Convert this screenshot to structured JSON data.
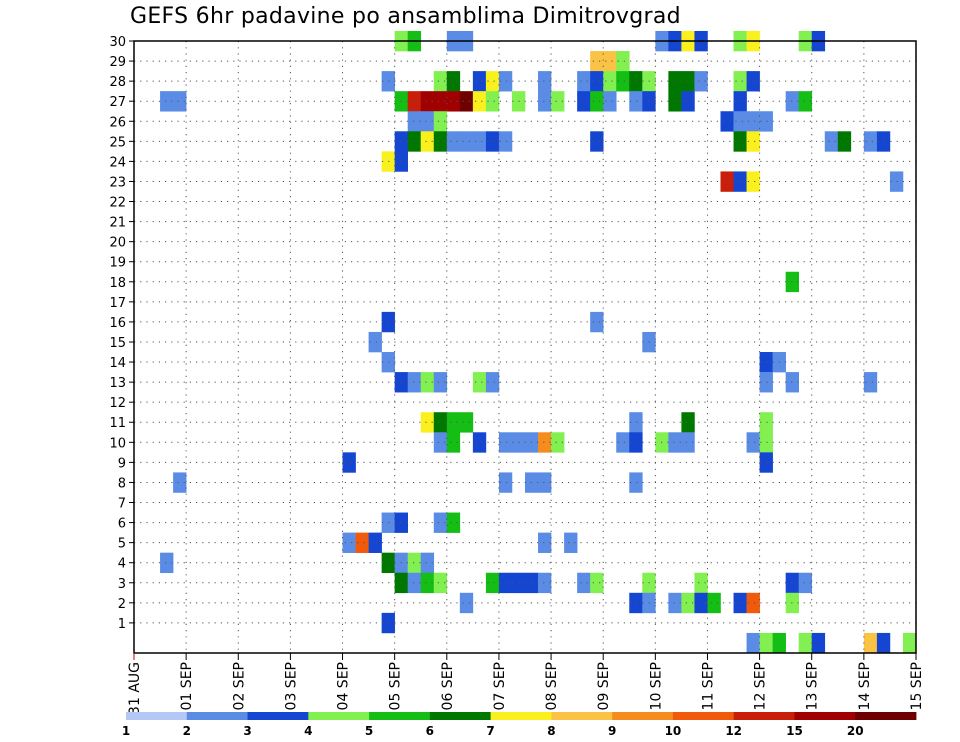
{
  "chart_data": {
    "type": "heatmap",
    "title": "GEFS 6hr padavine po ansamblima Dimitrovgrad",
    "xlabel": "",
    "ylabel": "",
    "x_ticks": [
      "31 AUG",
      "01 SEP",
      "02 SEP",
      "03 SEP",
      "04 SEP",
      "05 SEP",
      "06 SEP",
      "07 SEP",
      "08 SEP",
      "09 SEP",
      "10 SEP",
      "11 SEP",
      "12 SEP",
      "13 SEP",
      "14 SEP",
      "15 SEP"
    ],
    "x_range_days": [
      0,
      15
    ],
    "x_step_hours": 6,
    "y_ticks": [
      1,
      2,
      3,
      4,
      5,
      6,
      7,
      8,
      9,
      10,
      11,
      12,
      13,
      14,
      15,
      16,
      17,
      18,
      19,
      20,
      21,
      22,
      23,
      24,
      25,
      26,
      27,
      28,
      29,
      30
    ],
    "y_range": [
      0,
      30
    ],
    "grid": true,
    "colorbar": {
      "levels": [
        "1",
        "2",
        "3",
        "4",
        "5",
        "6",
        "7",
        "8",
        "9",
        "10",
        "12",
        "15",
        "20"
      ],
      "colors": [
        "#b4c8f5",
        "#5a8ce6",
        "#1446d2",
        "#82f050",
        "#14be14",
        "#007800",
        "#faf01e",
        "#fac346",
        "#f58c1e",
        "#f05a0a",
        "#c81e0a",
        "#a00000",
        "#6e0000"
      ]
    },
    "cells": [
      [
        5.0,
        30,
        3
      ],
      [
        5.25,
        30,
        4
      ],
      [
        6.0,
        30,
        1
      ],
      [
        6.25,
        30,
        1
      ],
      [
        10.0,
        30,
        1
      ],
      [
        10.25,
        30,
        2
      ],
      [
        10.5,
        30,
        6
      ],
      [
        10.75,
        30,
        2
      ],
      [
        11.5,
        30,
        3
      ],
      [
        11.75,
        30,
        6
      ],
      [
        12.75,
        30,
        3
      ],
      [
        13.0,
        30,
        2
      ],
      [
        8.75,
        29,
        7
      ],
      [
        9.0,
        29,
        7
      ],
      [
        9.25,
        29,
        3
      ],
      [
        4.75,
        28,
        1
      ],
      [
        5.75,
        28,
        3
      ],
      [
        6.0,
        28,
        5
      ],
      [
        6.5,
        28,
        2
      ],
      [
        6.75,
        28,
        6
      ],
      [
        7.0,
        28,
        1
      ],
      [
        7.75,
        28,
        1
      ],
      [
        8.5,
        28,
        1
      ],
      [
        8.75,
        28,
        2
      ],
      [
        9.0,
        28,
        3
      ],
      [
        9.25,
        28,
        4
      ],
      [
        9.5,
        28,
        5
      ],
      [
        9.75,
        28,
        3
      ],
      [
        10.25,
        28,
        5
      ],
      [
        10.5,
        28,
        5
      ],
      [
        10.75,
        28,
        1
      ],
      [
        11.5,
        28,
        3
      ],
      [
        11.75,
        28,
        2
      ],
      [
        0.5,
        27,
        1
      ],
      [
        0.75,
        27,
        1
      ],
      [
        5.0,
        27,
        4
      ],
      [
        5.25,
        27,
        10
      ],
      [
        5.5,
        27,
        11
      ],
      [
        5.75,
        27,
        11
      ],
      [
        6.0,
        27,
        11
      ],
      [
        6.25,
        27,
        12
      ],
      [
        6.5,
        27,
        6
      ],
      [
        6.75,
        27,
        3
      ],
      [
        7.25,
        27,
        3
      ],
      [
        7.75,
        27,
        1
      ],
      [
        8.0,
        27,
        3
      ],
      [
        8.5,
        27,
        2
      ],
      [
        8.75,
        27,
        4
      ],
      [
        9.0,
        27,
        1
      ],
      [
        9.5,
        27,
        1
      ],
      [
        9.75,
        27,
        2
      ],
      [
        10.25,
        27,
        5
      ],
      [
        10.5,
        27,
        2
      ],
      [
        11.5,
        27,
        2
      ],
      [
        12.5,
        27,
        1
      ],
      [
        12.75,
        27,
        4
      ],
      [
        5.25,
        26,
        1
      ],
      [
        5.5,
        26,
        1
      ],
      [
        5.75,
        26,
        3
      ],
      [
        11.25,
        26,
        2
      ],
      [
        11.5,
        26,
        1
      ],
      [
        11.75,
        26,
        1
      ],
      [
        12.0,
        26,
        1
      ],
      [
        5.0,
        25,
        2
      ],
      [
        5.25,
        25,
        5
      ],
      [
        5.5,
        25,
        6
      ],
      [
        5.75,
        25,
        5
      ],
      [
        6.0,
        25,
        1
      ],
      [
        6.25,
        25,
        1
      ],
      [
        6.5,
        25,
        1
      ],
      [
        6.75,
        25,
        2
      ],
      [
        7.0,
        25,
        1
      ],
      [
        8.75,
        25,
        2
      ],
      [
        11.5,
        25,
        5
      ],
      [
        11.75,
        25,
        6
      ],
      [
        13.25,
        25,
        1
      ],
      [
        13.5,
        25,
        5
      ],
      [
        14.0,
        25,
        1
      ],
      [
        14.25,
        25,
        2
      ],
      [
        4.75,
        24,
        6
      ],
      [
        5.0,
        24,
        2
      ],
      [
        11.25,
        23,
        10
      ],
      [
        11.5,
        23,
        2
      ],
      [
        11.75,
        23,
        6
      ],
      [
        14.5,
        23,
        1
      ],
      [
        12.5,
        18,
        4
      ],
      [
        4.75,
        16,
        2
      ],
      [
        8.75,
        16,
        1
      ],
      [
        4.5,
        15,
        1
      ],
      [
        9.75,
        15,
        1
      ],
      [
        4.75,
        14,
        1
      ],
      [
        12.0,
        14,
        2
      ],
      [
        12.25,
        14,
        1
      ],
      [
        5.0,
        13,
        2
      ],
      [
        5.25,
        13,
        1
      ],
      [
        5.5,
        13,
        3
      ],
      [
        5.75,
        13,
        1
      ],
      [
        6.5,
        13,
        3
      ],
      [
        6.75,
        13,
        1
      ],
      [
        12.0,
        13,
        1
      ],
      [
        12.5,
        13,
        1
      ],
      [
        14.0,
        13,
        1
      ],
      [
        5.5,
        11,
        6
      ],
      [
        5.75,
        11,
        5
      ],
      [
        6.0,
        11,
        4
      ],
      [
        6.25,
        11,
        4
      ],
      [
        9.5,
        11,
        1
      ],
      [
        10.5,
        11,
        5
      ],
      [
        12.0,
        11,
        3
      ],
      [
        5.75,
        10,
        1
      ],
      [
        6.0,
        10,
        4
      ],
      [
        6.5,
        10,
        2
      ],
      [
        7.0,
        10,
        1
      ],
      [
        7.25,
        10,
        1
      ],
      [
        7.5,
        10,
        1
      ],
      [
        7.75,
        10,
        8
      ],
      [
        8.0,
        10,
        3
      ],
      [
        9.25,
        10,
        1
      ],
      [
        9.5,
        10,
        2
      ],
      [
        10.0,
        10,
        3
      ],
      [
        10.25,
        10,
        1
      ],
      [
        10.5,
        10,
        1
      ],
      [
        11.75,
        10,
        1
      ],
      [
        12.0,
        10,
        3
      ],
      [
        4.0,
        9,
        2
      ],
      [
        12.0,
        9,
        2
      ],
      [
        0.75,
        8,
        1
      ],
      [
        7.0,
        8,
        1
      ],
      [
        7.5,
        8,
        1
      ],
      [
        7.75,
        8,
        1
      ],
      [
        9.5,
        8,
        1
      ],
      [
        4.75,
        6,
        1
      ],
      [
        5.0,
        6,
        2
      ],
      [
        5.75,
        6,
        1
      ],
      [
        6.0,
        6,
        4
      ],
      [
        4.0,
        5,
        1
      ],
      [
        4.25,
        5,
        9
      ],
      [
        4.5,
        5,
        2
      ],
      [
        7.75,
        5,
        1
      ],
      [
        8.25,
        5,
        1
      ],
      [
        0.5,
        4,
        1
      ],
      [
        4.75,
        4,
        5
      ],
      [
        5.0,
        4,
        1
      ],
      [
        5.25,
        4,
        3
      ],
      [
        5.5,
        4,
        1
      ],
      [
        5.0,
        3,
        5
      ],
      [
        5.25,
        3,
        1
      ],
      [
        5.5,
        3,
        4
      ],
      [
        5.75,
        3,
        3
      ],
      [
        6.75,
        3,
        4
      ],
      [
        7.0,
        3,
        2
      ],
      [
        7.25,
        3,
        2
      ],
      [
        7.5,
        3,
        2
      ],
      [
        7.75,
        3,
        1
      ],
      [
        8.5,
        3,
        1
      ],
      [
        8.75,
        3,
        3
      ],
      [
        9.75,
        3,
        3
      ],
      [
        10.75,
        3,
        3
      ],
      [
        12.5,
        3,
        2
      ],
      [
        12.75,
        3,
        1
      ],
      [
        6.25,
        2,
        1
      ],
      [
        9.5,
        2,
        2
      ],
      [
        9.75,
        2,
        1
      ],
      [
        10.25,
        2,
        1
      ],
      [
        10.5,
        2,
        3
      ],
      [
        10.75,
        2,
        2
      ],
      [
        11.0,
        2,
        4
      ],
      [
        11.5,
        2,
        2
      ],
      [
        11.75,
        2,
        9
      ],
      [
        12.5,
        2,
        3
      ],
      [
        4.75,
        1,
        2
      ],
      [
        11.75,
        0,
        1
      ],
      [
        12.0,
        0,
        3
      ],
      [
        12.25,
        0,
        4
      ],
      [
        12.75,
        0,
        3
      ],
      [
        13.0,
        0,
        2
      ],
      [
        14.0,
        0,
        7
      ],
      [
        14.25,
        0,
        2
      ],
      [
        14.75,
        0,
        3
      ]
    ]
  }
}
